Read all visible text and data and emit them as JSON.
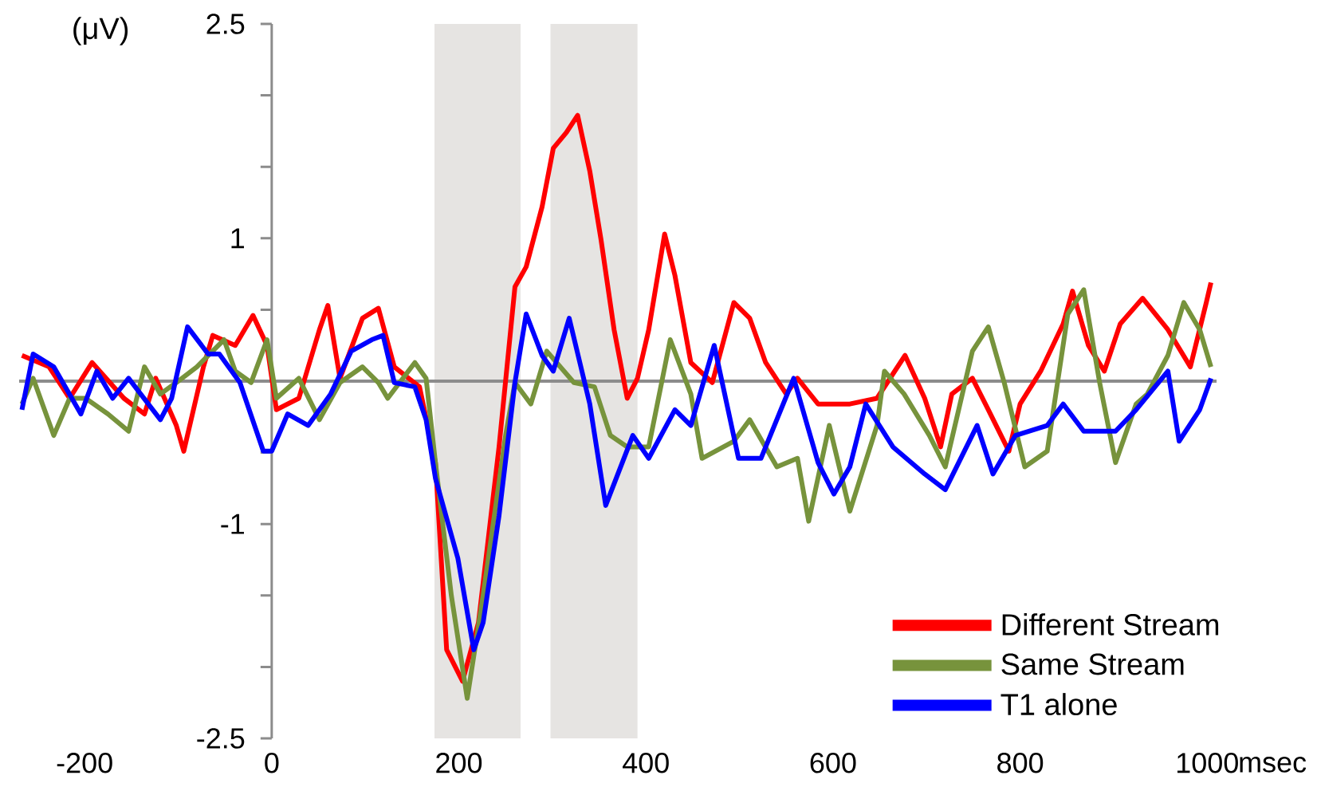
{
  "chart_data": {
    "type": "line",
    "ylabel": "(μV)",
    "xlabel": "msec",
    "xlim": [
      -270,
      1010
    ],
    "ylim": [
      -2.5,
      2.5
    ],
    "xticks": [
      -200,
      0,
      200,
      400,
      600,
      800,
      1000
    ],
    "yticks": [
      -2.5,
      {
        "value": -2,
        "label": null
      },
      {
        "value": -1.5,
        "label": null
      },
      -1,
      {
        "value": -0.5,
        "label": null
      },
      {
        "value": 0,
        "label": null
      },
      {
        "value": 0.5,
        "label": null
      },
      1,
      {
        "value": 1.5,
        "label": null
      },
      {
        "value": 2,
        "label": null
      },
      2.5
    ],
    "legend": "bottom right",
    "ref_lines": [
      {
        "axis": "y",
        "value": 0,
        "color": "#8c8c8c"
      }
    ],
    "bands": [
      {
        "axis": "x",
        "from": 174,
        "to": 266,
        "color": "#e6e4e2"
      },
      {
        "axis": "x",
        "from": 298,
        "to": 391,
        "color": "#e6e4e2"
      }
    ],
    "series": [
      {
        "name": "Different Stream",
        "color": "#ff0000",
        "x": [
          -267,
          -238,
          -216,
          -192,
          -158,
          -136,
          -124,
          -102,
          -94,
          -73,
          -63,
          -39,
          -20,
          -5,
          5,
          29,
          51,
          60,
          73,
          97,
          114,
          131,
          158,
          175,
          187,
          204,
          221,
          243,
          260,
          272,
          289,
          301,
          315,
          327,
          340,
          352,
          366,
          380,
          391,
          403,
          420,
          431,
          448,
          471,
          494,
          511,
          528,
          550,
          562,
          584,
          618,
          647,
          677,
          698,
          715,
          727,
          749,
          766,
          788,
          800,
          822,
          846,
          856,
          873,
          890,
          907,
          931,
          958,
          982,
          999,
          1004
        ],
        "values": [
          0.18,
          0.1,
          -0.12,
          0.13,
          -0.12,
          -0.23,
          0.02,
          -0.31,
          -0.49,
          0.1,
          0.32,
          0.25,
          0.46,
          0.25,
          -0.2,
          -0.12,
          0.36,
          0.53,
          0.02,
          0.44,
          0.51,
          0.1,
          -0.04,
          -0.57,
          -1.88,
          -2.1,
          -1.69,
          -0.46,
          0.66,
          0.8,
          1.22,
          1.63,
          1.74,
          1.86,
          1.47,
          0.99,
          0.36,
          -0.12,
          0.02,
          0.36,
          1.03,
          0.74,
          0.13,
          -0.01,
          0.55,
          0.44,
          0.13,
          -0.09,
          0.02,
          -0.16,
          -0.16,
          -0.12,
          0.18,
          -0.12,
          -0.46,
          -0.09,
          0.02,
          -0.2,
          -0.49,
          -0.16,
          0.07,
          0.4,
          0.63,
          0.25,
          0.07,
          0.4,
          0.58,
          0.36,
          0.1,
          0.55,
          0.69
        ]
      },
      {
        "name": "Same Stream",
        "color": "#77933c",
        "x": [
          -267,
          -255,
          -233,
          -216,
          -199,
          -175,
          -153,
          -136,
          -119,
          -102,
          -80,
          -51,
          -39,
          -22,
          -5,
          5,
          29,
          51,
          73,
          97,
          114,
          124,
          153,
          165,
          175,
          192,
          209,
          226,
          250,
          260,
          277,
          294,
          323,
          345,
          362,
          380,
          403,
          426,
          448,
          460,
          494,
          511,
          540,
          562,
          574,
          596,
          618,
          647,
          655,
          676,
          703,
          720,
          749,
          766,
          783,
          805,
          829,
          851,
          868,
          885,
          902,
          924,
          936,
          958,
          975,
          992,
          1004
        ],
        "values": [
          -0.16,
          0.02,
          -0.38,
          -0.12,
          -0.12,
          -0.23,
          -0.35,
          0.1,
          -0.09,
          -0.01,
          0.1,
          0.29,
          0.07,
          -0.01,
          0.29,
          -0.12,
          0.02,
          -0.27,
          -0.01,
          0.1,
          -0.01,
          -0.12,
          0.13,
          0.02,
          -0.57,
          -1.5,
          -2.22,
          -1.5,
          -0.38,
          -0.01,
          -0.16,
          0.21,
          -0.01,
          -0.04,
          -0.38,
          -0.46,
          -0.46,
          0.29,
          -0.09,
          -0.54,
          -0.42,
          -0.27,
          -0.6,
          -0.54,
          -0.98,
          -0.31,
          -0.91,
          -0.31,
          0.07,
          -0.09,
          -0.38,
          -0.6,
          0.21,
          0.38,
          -0.01,
          -0.6,
          -0.49,
          0.47,
          0.64,
          -0.01,
          -0.57,
          -0.16,
          -0.09,
          0.18,
          0.55,
          0.36,
          0.1
        ]
      },
      {
        "name": "T1 alone",
        "color": "#0000ff",
        "x": [
          -267,
          -255,
          -233,
          -204,
          -187,
          -170,
          -153,
          -119,
          -107,
          -90,
          -68,
          -56,
          -34,
          -9,
          0,
          17,
          39,
          63,
          85,
          107,
          119,
          131,
          153,
          165,
          175,
          199,
          216,
          226,
          243,
          260,
          272,
          289,
          301,
          318,
          340,
          357,
          386,
          403,
          431,
          448,
          473,
          499,
          523,
          558,
          584,
          601,
          618,
          635,
          664,
          698,
          720,
          754,
          771,
          795,
          829,
          846,
          868,
          902,
          924,
          958,
          970,
          992,
          1004
        ],
        "values": [
          -0.2,
          0.19,
          0.1,
          -0.23,
          0.07,
          -0.12,
          0.02,
          -0.27,
          -0.12,
          0.38,
          0.19,
          0.19,
          -0.01,
          -0.49,
          -0.49,
          -0.23,
          -0.31,
          -0.09,
          0.21,
          0.29,
          0.32,
          -0.01,
          -0.04,
          -0.27,
          -0.68,
          -1.24,
          -1.88,
          -1.69,
          -0.94,
          -0.01,
          0.47,
          0.18,
          0.07,
          0.44,
          -0.16,
          -0.87,
          -0.38,
          -0.54,
          -0.2,
          -0.31,
          0.25,
          -0.54,
          -0.54,
          0.02,
          -0.57,
          -0.79,
          -0.6,
          -0.16,
          -0.46,
          -0.65,
          -0.76,
          -0.31,
          -0.65,
          -0.38,
          -0.31,
          -0.16,
          -0.35,
          -0.35,
          -0.2,
          0.07,
          -0.42,
          -0.2,
          0.02
        ]
      }
    ]
  }
}
